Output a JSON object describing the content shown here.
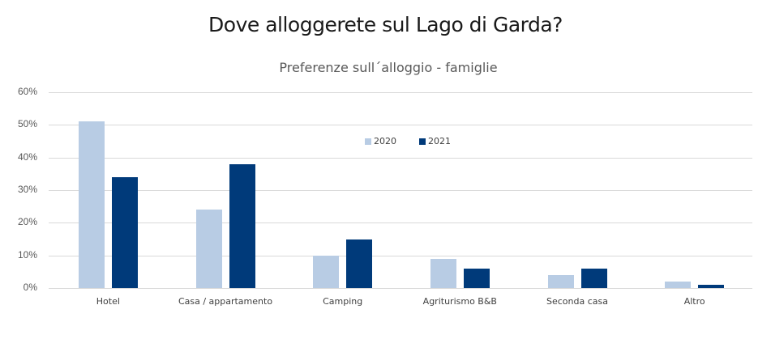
{
  "header": {
    "title": "Dove alloggerete sul Lago di Garda?",
    "subtitle": "Preferenze sull´alloggio - famiglie"
  },
  "legend": [
    {
      "label": "2020",
      "color": "#b8cce4"
    },
    {
      "label": "2021",
      "color": "#003a7a"
    }
  ],
  "yaxis": {
    "ticks": [
      "0%",
      "10%",
      "20%",
      "30%",
      "40%",
      "50%",
      "60%"
    ]
  },
  "chart_data": {
    "type": "bar",
    "title": "Dove alloggerete sul Lago di Garda?",
    "subtitle": "Preferenze sull´alloggio - famiglie",
    "categories": [
      "Hotel",
      "Casa / appartamento",
      "Camping",
      "Agriturismo B&B",
      "Seconda casa",
      "Altro"
    ],
    "series": [
      {
        "name": "2020",
        "color": "#b8cce4",
        "values": [
          51,
          24,
          10,
          9,
          4,
          2
        ]
      },
      {
        "name": "2021",
        "color": "#003a7a",
        "values": [
          34,
          38,
          15,
          6,
          6,
          1
        ]
      }
    ],
    "xlabel": "",
    "ylabel": "",
    "ylim": [
      0,
      60
    ],
    "yticks": [
      0,
      10,
      20,
      30,
      40,
      50,
      60
    ],
    "value_format": "percent",
    "grid": true,
    "legend_position": "inside-top-center"
  }
}
